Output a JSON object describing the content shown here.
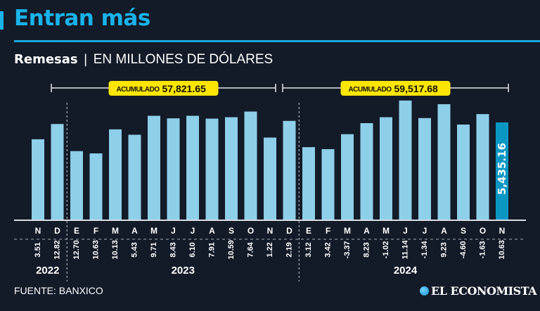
{
  "header": {
    "title": "Entran más",
    "subtitle_bold": "Remesas",
    "subtitle_sep": "|",
    "subtitle_unit": "EN MILLONES DE DÓLARES"
  },
  "footer": {
    "source": "FUENTE: BANXICO",
    "logo": "EL ECONOMISTA"
  },
  "colors": {
    "background": "#131a28",
    "accent": "#19b3ea",
    "bar": "#8ecfe9",
    "highlight_bar": "#0a97c4",
    "badge": "#ffe600"
  },
  "chart_data": {
    "type": "bar",
    "title": "Remesas",
    "ylabel": "Millones de dólares",
    "ylim": [
      2000,
      6800
    ],
    "categories": [
      "N",
      "D",
      "E",
      "F",
      "M",
      "A",
      "M",
      "J",
      "J",
      "A",
      "S",
      "O",
      "N",
      "D",
      "E",
      "F",
      "M",
      "A",
      "M",
      "J",
      "J",
      "A",
      "S",
      "O",
      "N"
    ],
    "years": [
      {
        "label": "2022",
        "from": 0,
        "to": 1
      },
      {
        "label": "2023",
        "from": 2,
        "to": 13
      },
      {
        "label": "2024",
        "from": 14,
        "to": 24
      }
    ],
    "values": [
      4840,
      5380,
      4420,
      4340,
      5190,
      5000,
      5670,
      5580,
      5670,
      5570,
      5620,
      5820,
      4900,
      5490,
      4560,
      4490,
      5020,
      5410,
      5620,
      6210,
      5590,
      6080,
      5360,
      5730,
      5435.16
    ],
    "growth_pct": [
      "3.51",
      "12.82",
      "12.70",
      "10.63",
      "10.13",
      "5.43",
      "9.71",
      "8.43",
      "6.10",
      "7.91",
      "10.59",
      "7.64",
      "1.22",
      "2.19",
      "3.12",
      "3.42",
      "-3.37",
      "8.23",
      "-1.02",
      "11.14",
      "-1.34",
      "9.23",
      "-4.60",
      "-1.63",
      "10.63"
    ],
    "highlight": {
      "index": 24,
      "label": "5,435.16"
    },
    "accumulated": [
      {
        "label": "ACUMULADO",
        "value": "57,821.65",
        "from": 0,
        "to": 12
      },
      {
        "label": "ACUMULADO",
        "value": "59,517.68",
        "from": 13,
        "to": 24
      }
    ]
  }
}
